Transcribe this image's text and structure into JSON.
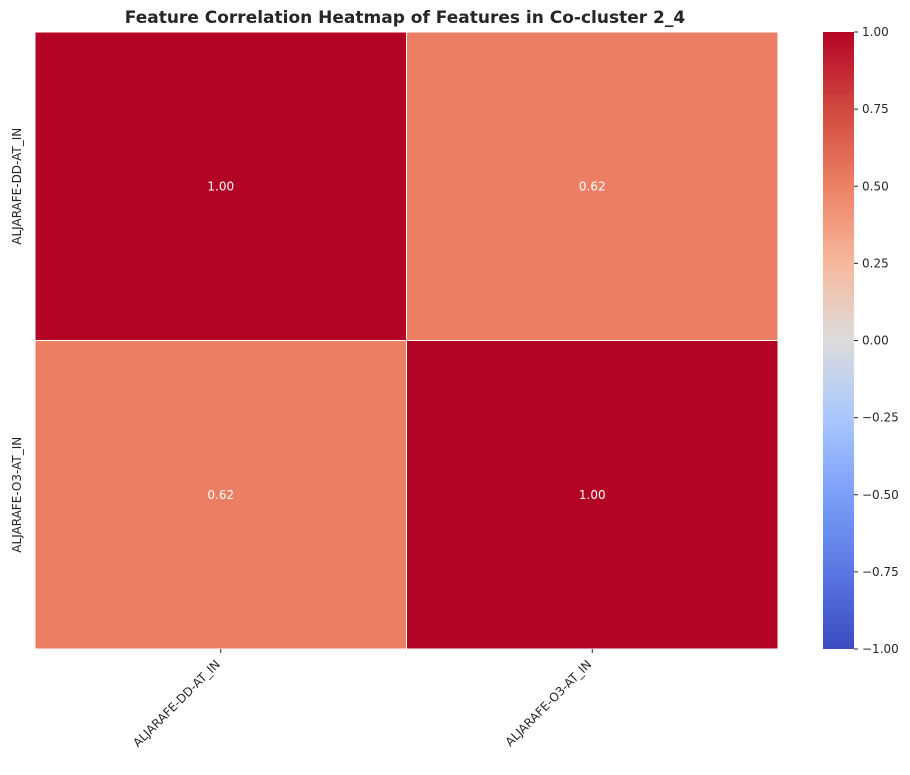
{
  "chart_data": {
    "type": "heatmap",
    "title": "Feature Correlation Heatmap of Features in Co-cluster 2_4",
    "xlabel": "",
    "ylabel": "",
    "x_categories": [
      "ALJARAFE-DD-AT_IN",
      "ALJARAFE-O3-AT_IN"
    ],
    "y_categories": [
      "ALJARAFE-DD-AT_IN",
      "ALJARAFE-O3-AT_IN"
    ],
    "values": [
      [
        1.0,
        0.62
      ],
      [
        0.62,
        1.0
      ]
    ],
    "annotations": [
      [
        "1.00",
        "0.62"
      ],
      [
        "0.62",
        "1.00"
      ]
    ],
    "colormap": "coolwarm",
    "vmin": -1.0,
    "vmax": 1.0,
    "colorbar_ticks": [
      1.0,
      0.75,
      0.5,
      0.25,
      0.0,
      -0.25,
      -0.5,
      -0.75,
      -1.0
    ],
    "colorbar_tick_labels": [
      "1.00",
      "0.75",
      "0.50",
      "0.25",
      "0.00",
      "−0.25",
      "−0.50",
      "−0.75",
      "−1.00"
    ],
    "colors": {
      "min": "#3b4cc0",
      "low_mid": "#aac7fd",
      "mid": "#dddcdc",
      "high_mid": "#f7b89c",
      "max": "#b40426",
      "cell_0_62": "#ec7f63",
      "cell_1_00": "#b40426"
    }
  }
}
